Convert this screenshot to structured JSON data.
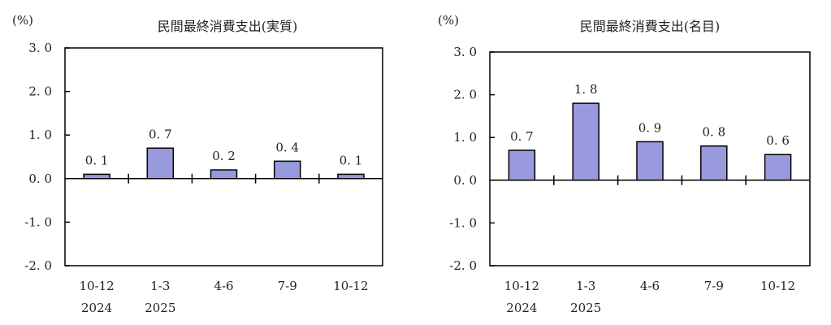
{
  "chart_data": [
    {
      "type": "bar",
      "title": "民間最終消費支出(実質)",
      "ylabel": "(%)",
      "xlabel": "",
      "categories": [
        "10-12",
        "1-3",
        "4-6",
        "7-9",
        "10-12"
      ],
      "year_labels": [
        "2024",
        "2025",
        "",
        "",
        ""
      ],
      "values": [
        0.1,
        0.7,
        0.2,
        0.4,
        0.1
      ],
      "value_labels": [
        "0.1",
        "0.7",
        "0.2",
        "0.4",
        "0.1"
      ],
      "ylim": [
        -2.0,
        3.0
      ],
      "yticks": [
        "3.0",
        "2.0",
        "1.0",
        "0.0",
        "-1.0",
        "-2.0"
      ],
      "grid": false,
      "bar_color": "#9999dd"
    },
    {
      "type": "bar",
      "title": "民間最終消費支出(名目)",
      "ylabel": "(%)",
      "xlabel": "",
      "categories": [
        "10-12",
        "1-3",
        "4-6",
        "7-9",
        "10-12"
      ],
      "year_labels": [
        "2024",
        "2025",
        "",
        "",
        ""
      ],
      "values": [
        0.7,
        1.8,
        0.9,
        0.8,
        0.6
      ],
      "value_labels": [
        "0.7",
        "1.8",
        "0.9",
        "0.8",
        "0.6"
      ],
      "ylim": [
        -2.0,
        3.0
      ],
      "yticks": [
        "3.0",
        "2.0",
        "1.0",
        "0.0",
        "-1.0",
        "-2.0"
      ],
      "grid": false,
      "bar_color": "#9999dd"
    }
  ]
}
